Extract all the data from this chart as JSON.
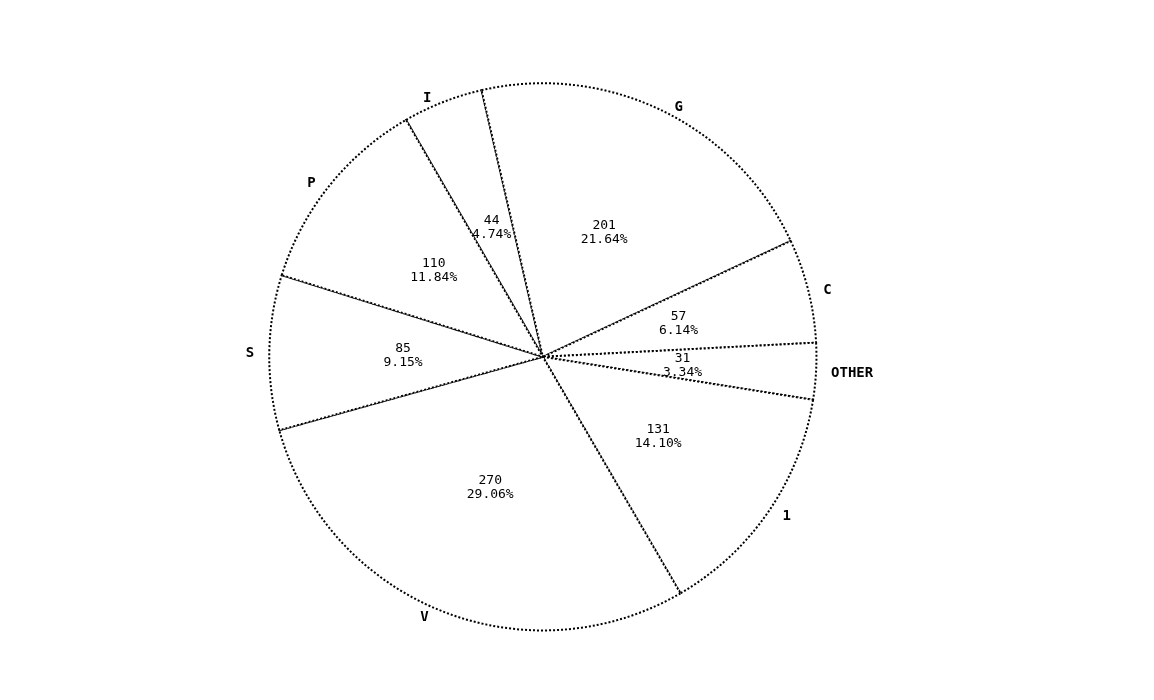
{
  "chart_data": {
    "type": "pie",
    "categories": [
      "I",
      "G",
      "C",
      "OTHER",
      "1",
      "V",
      "S",
      "P"
    ],
    "values": [
      44,
      201,
      57,
      31,
      131,
      270,
      85,
      110
    ],
    "value_labels": [
      "44\n4.74%",
      "201\n21.64%",
      "57\n6.14%",
      "31\n3.34%",
      "131\n14.10%",
      "270\n29.06%",
      "85\n9.15%",
      "110\n11.84%"
    ],
    "colors": [
      "#ffffff",
      "#ffffff",
      "#ffffff",
      "#ffffff",
      "#ffffff",
      "#ffffff",
      "#ffffff",
      "#ffffff"
    ],
    "line_style": "dotted",
    "legend": false
  }
}
